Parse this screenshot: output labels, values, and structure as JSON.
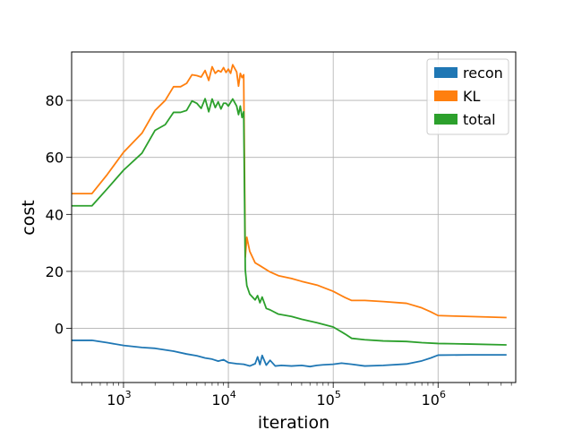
{
  "chart_data": {
    "type": "line",
    "title": "",
    "xlabel": "iteration",
    "ylabel": "cost",
    "x_scale": "log",
    "xlim": [
      320,
      5500000
    ],
    "ylim": [
      -19,
      97
    ],
    "grid": true,
    "legend_placement": "top-right",
    "x_ticks": [
      {
        "value": 1000,
        "base": "10",
        "exp": "3"
      },
      {
        "value": 10000,
        "base": "10",
        "exp": "4"
      },
      {
        "value": 100000,
        "base": "10",
        "exp": "5"
      },
      {
        "value": 1000000,
        "base": "10",
        "exp": "6"
      }
    ],
    "y_ticks": [
      {
        "value": 0,
        "label": "0"
      },
      {
        "value": 20,
        "label": "20"
      },
      {
        "value": 40,
        "label": "40"
      },
      {
        "value": 60,
        "label": "60"
      },
      {
        "value": 80,
        "label": "80"
      }
    ],
    "series": [
      {
        "name": "recon",
        "color": "#1f77b4",
        "points": [
          [
            320,
            -4.2
          ],
          [
            500,
            -4.2
          ],
          [
            700,
            -5.0
          ],
          [
            1000,
            -6.0
          ],
          [
            1500,
            -6.7
          ],
          [
            2000,
            -7.0
          ],
          [
            3000,
            -8.0
          ],
          [
            4000,
            -9.0
          ],
          [
            5000,
            -9.6
          ],
          [
            6000,
            -10.4
          ],
          [
            7000,
            -10.8
          ],
          [
            8000,
            -11.5
          ],
          [
            9000,
            -11.0
          ],
          [
            10000,
            -12.0
          ],
          [
            12000,
            -12.4
          ],
          [
            14000,
            -12.6
          ],
          [
            16000,
            -13.2
          ],
          [
            18000,
            -12.4
          ],
          [
            19000,
            -10.0
          ],
          [
            20000,
            -12.7
          ],
          [
            21000,
            -9.5
          ],
          [
            23000,
            -12.9
          ],
          [
            25000,
            -11.2
          ],
          [
            28000,
            -13.2
          ],
          [
            32000,
            -13.0
          ],
          [
            40000,
            -13.2
          ],
          [
            50000,
            -13.0
          ],
          [
            60000,
            -13.4
          ],
          [
            70000,
            -13.0
          ],
          [
            80000,
            -12.8
          ],
          [
            100000,
            -12.6
          ],
          [
            120000,
            -12.2
          ],
          [
            150000,
            -12.6
          ],
          [
            200000,
            -13.2
          ],
          [
            300000,
            -13.0
          ],
          [
            500000,
            -12.5
          ],
          [
            700000,
            -11.4
          ],
          [
            850000,
            -10.4
          ],
          [
            1000000,
            -9.4
          ],
          [
            2000000,
            -9.3
          ],
          [
            4500000,
            -9.3
          ]
        ]
      },
      {
        "name": "KL",
        "color": "#ff7f0e",
        "points": [
          [
            320,
            47.3
          ],
          [
            500,
            47.3
          ],
          [
            700,
            54.0
          ],
          [
            1000,
            61.8
          ],
          [
            1500,
            68.5
          ],
          [
            2000,
            76.5
          ],
          [
            2500,
            80.0
          ],
          [
            3000,
            84.8
          ],
          [
            3500,
            84.8
          ],
          [
            4000,
            86.0
          ],
          [
            4500,
            89.0
          ],
          [
            5000,
            88.7
          ],
          [
            5500,
            88.2
          ],
          [
            6000,
            90.5
          ],
          [
            6500,
            87.0
          ],
          [
            7000,
            91.8
          ],
          [
            7500,
            89.5
          ],
          [
            8000,
            90.5
          ],
          [
            8500,
            90.0
          ],
          [
            9000,
            91.5
          ],
          [
            9500,
            89.8
          ],
          [
            10000,
            91.0
          ],
          [
            10500,
            89.5
          ],
          [
            11000,
            92.5
          ],
          [
            12000,
            90.0
          ],
          [
            12500,
            85.0
          ],
          [
            13000,
            89.5
          ],
          [
            13500,
            88.0
          ],
          [
            14000,
            89.0
          ],
          [
            14500,
            25.0
          ],
          [
            15000,
            32.0
          ],
          [
            16000,
            27.0
          ],
          [
            18000,
            23.0
          ],
          [
            20000,
            22.0
          ],
          [
            25000,
            19.8
          ],
          [
            30000,
            18.5
          ],
          [
            40000,
            17.5
          ],
          [
            50000,
            16.5
          ],
          [
            70000,
            15.2
          ],
          [
            100000,
            13.0
          ],
          [
            130000,
            10.8
          ],
          [
            150000,
            9.8
          ],
          [
            200000,
            9.8
          ],
          [
            300000,
            9.4
          ],
          [
            500000,
            8.8
          ],
          [
            700000,
            7.2
          ],
          [
            850000,
            5.8
          ],
          [
            1000000,
            4.5
          ],
          [
            1500000,
            4.3
          ],
          [
            3000000,
            4.0
          ],
          [
            4500000,
            3.8
          ]
        ]
      },
      {
        "name": "total",
        "color": "#2ca02c",
        "points": [
          [
            320,
            43.0
          ],
          [
            500,
            43.0
          ],
          [
            700,
            49.0
          ],
          [
            1000,
            55.5
          ],
          [
            1500,
            61.5
          ],
          [
            2000,
            69.5
          ],
          [
            2500,
            71.5
          ],
          [
            3000,
            75.8
          ],
          [
            3500,
            75.8
          ],
          [
            4000,
            76.5
          ],
          [
            4500,
            79.8
          ],
          [
            5000,
            79.0
          ],
          [
            5500,
            77.2
          ],
          [
            6000,
            80.6
          ],
          [
            6500,
            76.0
          ],
          [
            7000,
            80.5
          ],
          [
            7500,
            77.5
          ],
          [
            8000,
            79.5
          ],
          [
            8500,
            77.0
          ],
          [
            9000,
            79.0
          ],
          [
            9500,
            79.0
          ],
          [
            10000,
            78.0
          ],
          [
            11000,
            80.5
          ],
          [
            12000,
            78.0
          ],
          [
            12500,
            75.0
          ],
          [
            13000,
            78.0
          ],
          [
            13500,
            74.0
          ],
          [
            14000,
            76.0
          ],
          [
            14500,
            20.5
          ],
          [
            15000,
            15.0
          ],
          [
            16000,
            12.0
          ],
          [
            18000,
            10.0
          ],
          [
            19000,
            11.5
          ],
          [
            20000,
            9.0
          ],
          [
            21000,
            11.0
          ],
          [
            23000,
            7.0
          ],
          [
            25000,
            6.5
          ],
          [
            30000,
            5.0
          ],
          [
            40000,
            4.2
          ],
          [
            50000,
            3.2
          ],
          [
            70000,
            2.0
          ],
          [
            100000,
            0.5
          ],
          [
            130000,
            -2.0
          ],
          [
            150000,
            -3.5
          ],
          [
            200000,
            -4.0
          ],
          [
            300000,
            -4.4
          ],
          [
            500000,
            -4.6
          ],
          [
            700000,
            -5.0
          ],
          [
            1000000,
            -5.3
          ],
          [
            2000000,
            -5.5
          ],
          [
            4500000,
            -5.8
          ]
        ]
      }
    ]
  }
}
